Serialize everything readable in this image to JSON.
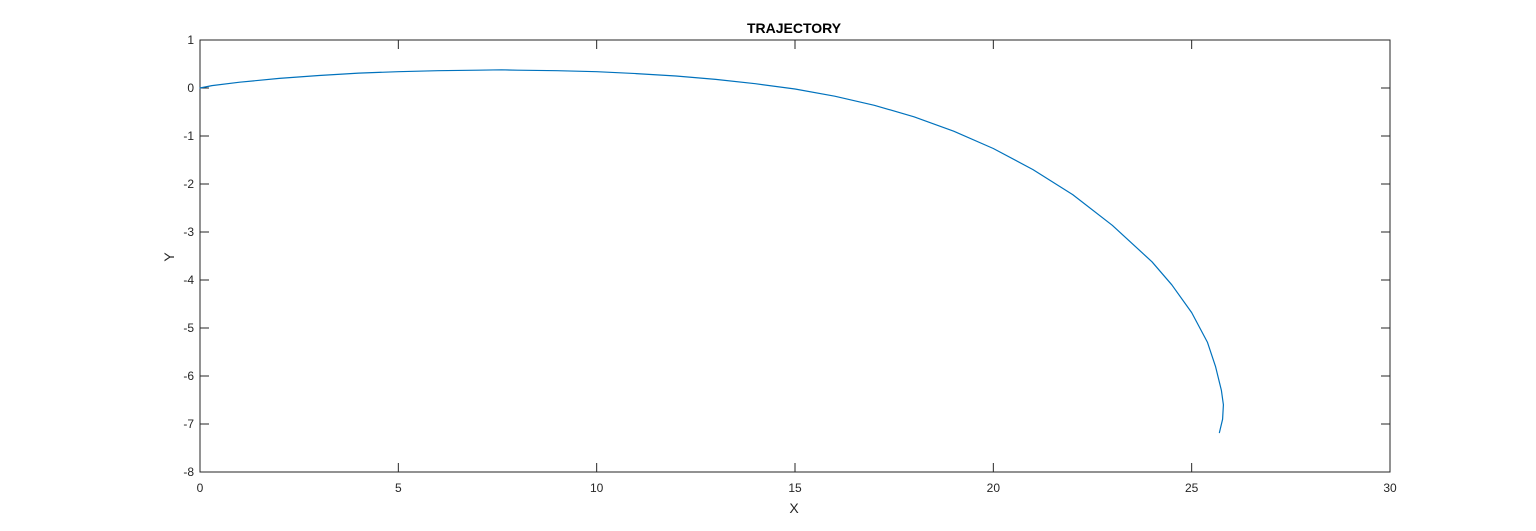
{
  "chart_data": {
    "type": "line",
    "title": "TRAJECTORY",
    "xlabel": "X",
    "ylabel": "Y",
    "xlim": [
      0,
      30
    ],
    "ylim": [
      -8,
      1
    ],
    "xticks": [
      0,
      5,
      10,
      15,
      20,
      25,
      30
    ],
    "yticks": [
      1,
      0,
      -1,
      -2,
      -3,
      -4,
      -5,
      -6,
      -7,
      -8
    ],
    "grid": false,
    "line_color": "#0072BD",
    "axis_color": "#262626",
    "series": [
      {
        "x": [
          0,
          0.3,
          1,
          2,
          3,
          4,
          5,
          6,
          7,
          7.6,
          8,
          9,
          10,
          11,
          12,
          13,
          14,
          15,
          16,
          17,
          18,
          19,
          20,
          21,
          22,
          23,
          24,
          24.5,
          25,
          25.4,
          25.6,
          25.75,
          25.8,
          25.78,
          25.7
        ],
        "y": [
          0,
          0.05,
          0.12,
          0.2,
          0.26,
          0.31,
          0.34,
          0.36,
          0.37,
          0.38,
          0.37,
          0.36,
          0.34,
          0.3,
          0.25,
          0.18,
          0.09,
          -0.02,
          -0.17,
          -0.36,
          -0.6,
          -0.9,
          -1.26,
          -1.7,
          -2.22,
          -2.86,
          -3.62,
          -4.1,
          -4.68,
          -5.3,
          -5.8,
          -6.3,
          -6.6,
          -6.9,
          -7.18
        ]
      }
    ]
  }
}
